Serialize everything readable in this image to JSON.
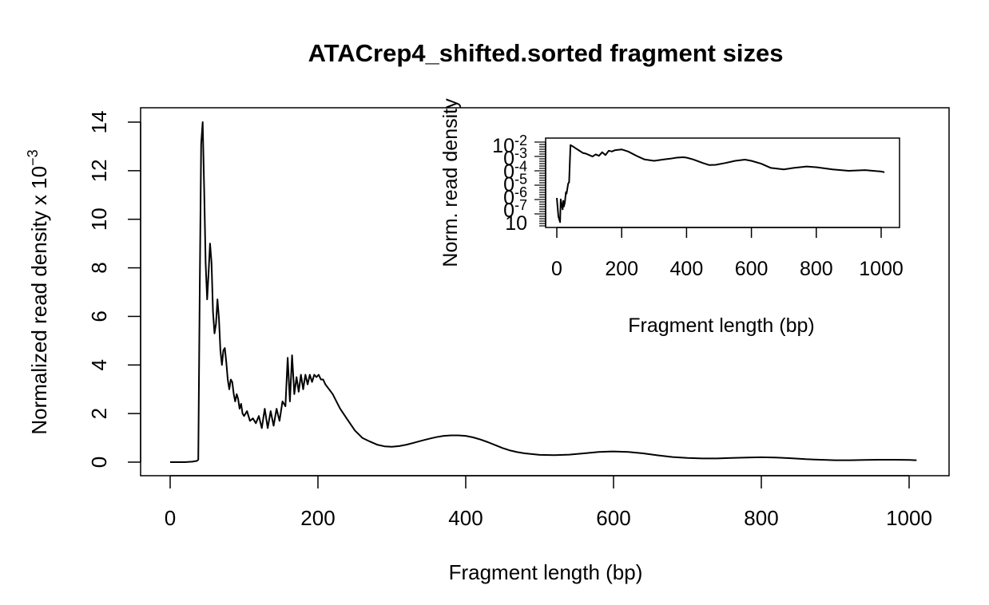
{
  "chart_data": [
    {
      "type": "line",
      "title": "ATACrep4_shifted.sorted fragment sizes",
      "xlabel": "Fragment length (bp)",
      "ylabel": "Normalized read density x 10",
      "ylabel_exponent": "−3",
      "xlim": [
        0,
        1010
      ],
      "ylim": [
        0,
        14
      ],
      "x_ticks": [
        0,
        200,
        400,
        600,
        800,
        1000
      ],
      "y_ticks": [
        0,
        2,
        4,
        6,
        8,
        10,
        12,
        14
      ],
      "grid": false,
      "series": [
        {
          "x": [
            0,
            10,
            20,
            30,
            36,
            38,
            40,
            42,
            44,
            46,
            48,
            50,
            52,
            54,
            56,
            58,
            60,
            62,
            64,
            66,
            68,
            70,
            72,
            74,
            76,
            78,
            80,
            82,
            84,
            86,
            88,
            90,
            92,
            94,
            96,
            98,
            100,
            104,
            108,
            112,
            116,
            120,
            124,
            128,
            132,
            136,
            140,
            144,
            148,
            152,
            156,
            159,
            162,
            165,
            168,
            171,
            174,
            177,
            180,
            183,
            186,
            189,
            192,
            195,
            198,
            201,
            204,
            207,
            210,
            215,
            220,
            225,
            230,
            240,
            250,
            260,
            270,
            280,
            290,
            300,
            310,
            320,
            330,
            340,
            350,
            360,
            370,
            380,
            390,
            400,
            410,
            420,
            430,
            440,
            450,
            460,
            470,
            480,
            500,
            520,
            540,
            560,
            580,
            600,
            620,
            640,
            660,
            680,
            700,
            720,
            740,
            760,
            780,
            800,
            820,
            840,
            860,
            880,
            900,
            920,
            940,
            960,
            980,
            1000,
            1010
          ],
          "y": [
            0.0,
            0.0,
            0.0,
            0.02,
            0.05,
            0.1,
            7.0,
            13.1,
            14.0,
            11.2,
            8.2,
            6.7,
            7.8,
            9.0,
            8.2,
            6.2,
            5.3,
            5.7,
            6.7,
            5.9,
            4.6,
            4.0,
            4.6,
            4.7,
            4.1,
            3.4,
            3.0,
            3.4,
            3.3,
            2.8,
            2.5,
            2.8,
            2.6,
            2.2,
            2.4,
            2.0,
            1.9,
            2.1,
            1.7,
            1.8,
            1.6,
            1.9,
            1.4,
            2.2,
            1.4,
            2.1,
            1.5,
            2.2,
            1.7,
            2.5,
            2.3,
            4.3,
            2.5,
            4.4,
            2.8,
            3.5,
            2.9,
            3.6,
            3.0,
            3.6,
            3.2,
            3.6,
            3.3,
            3.6,
            3.5,
            3.6,
            3.4,
            3.4,
            3.2,
            3.0,
            2.8,
            2.5,
            2.2,
            1.75,
            1.3,
            1.0,
            0.85,
            0.72,
            0.65,
            0.63,
            0.66,
            0.72,
            0.8,
            0.88,
            0.96,
            1.03,
            1.08,
            1.1,
            1.1,
            1.08,
            1.02,
            0.93,
            0.82,
            0.7,
            0.58,
            0.48,
            0.41,
            0.36,
            0.3,
            0.29,
            0.31,
            0.36,
            0.42,
            0.44,
            0.42,
            0.36,
            0.28,
            0.21,
            0.17,
            0.15,
            0.15,
            0.17,
            0.19,
            0.2,
            0.19,
            0.16,
            0.12,
            0.1,
            0.08,
            0.08,
            0.09,
            0.1,
            0.1,
            0.09,
            0.08
          ]
        }
      ]
    },
    {
      "type": "line",
      "xlabel": "Fragment length (bp)",
      "ylabel": "Norm. read density",
      "y_scale": "log",
      "xlim": [
        0,
        1010
      ],
      "x_ticks": [
        0,
        200,
        400,
        600,
        800,
        1000
      ],
      "y_tick_labels": [
        {
          "base": "10",
          "exp": "-2"
        },
        {
          "base": "0",
          "exp": "-3"
        },
        {
          "base": "0",
          "exp": "-4"
        },
        {
          "base": "0",
          "exp": "-5"
        },
        {
          "base": "0",
          "exp": "-6"
        },
        {
          "base": "0",
          "exp": "-7"
        },
        {
          "base": "10",
          "exp": ""
        }
      ],
      "grid": false,
      "series": [
        {
          "x": [
            0,
            5,
            10,
            12,
            15,
            18,
            20,
            22,
            25,
            28,
            30,
            35,
            38,
            42,
            50,
            60,
            70,
            80,
            90,
            100,
            110,
            120,
            130,
            140,
            150,
            160,
            170,
            180,
            200,
            220,
            250,
            270,
            300,
            330,
            350,
            370,
            390,
            400,
            420,
            450,
            470,
            490,
            520,
            550,
            580,
            600,
            630,
            660,
            700,
            730,
            770,
            800,
            850,
            900,
            950,
            1000,
            1010
          ],
          "y": [
            -5.6,
            -6.9,
            -7.3,
            -5.7,
            -6.1,
            -6.4,
            -5.8,
            -6.2,
            -5.9,
            -5.2,
            -5.3,
            -4.6,
            -4.5,
            -1.9,
            -2.0,
            -2.15,
            -2.3,
            -2.45,
            -2.5,
            -2.6,
            -2.7,
            -2.55,
            -2.65,
            -2.4,
            -2.6,
            -2.3,
            -2.35,
            -2.25,
            -2.2,
            -2.35,
            -2.7,
            -2.9,
            -3.0,
            -2.9,
            -2.85,
            -2.78,
            -2.75,
            -2.78,
            -2.9,
            -3.15,
            -3.3,
            -3.28,
            -3.15,
            -3.0,
            -2.92,
            -3.0,
            -3.2,
            -3.5,
            -3.6,
            -3.5,
            -3.4,
            -3.45,
            -3.6,
            -3.7,
            -3.65,
            -3.75,
            -3.8
          ]
        }
      ]
    }
  ]
}
